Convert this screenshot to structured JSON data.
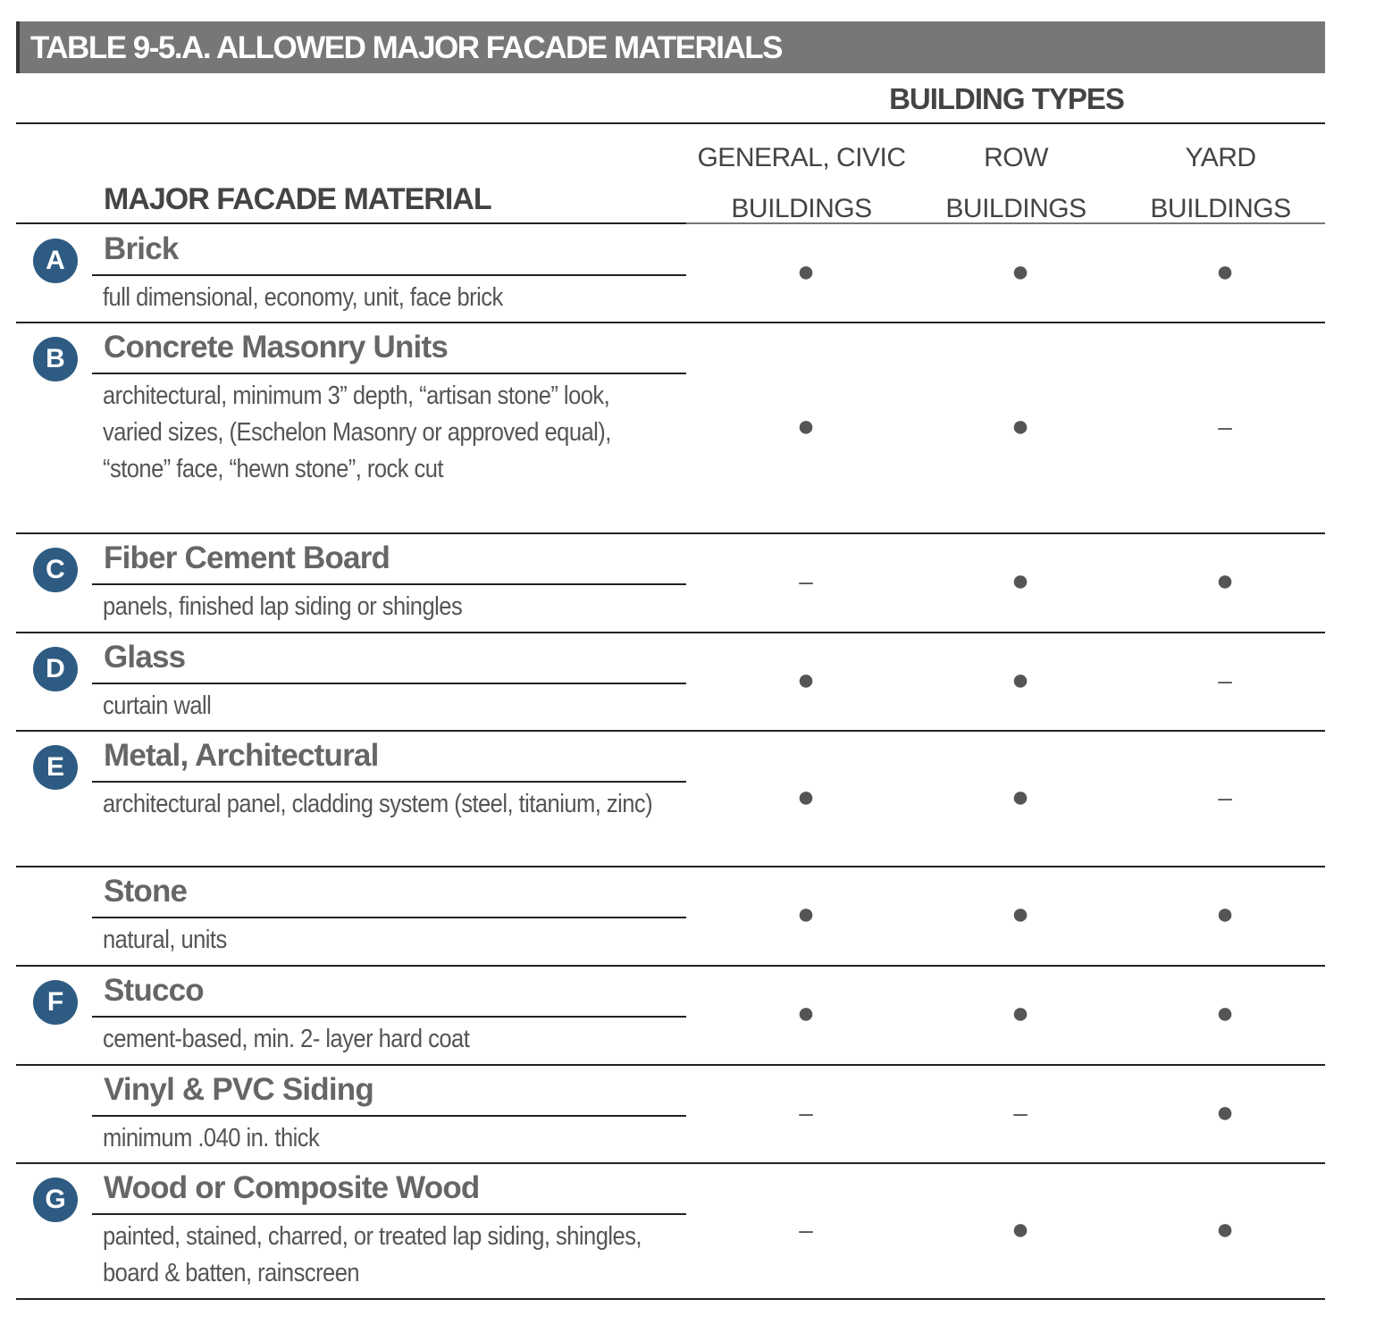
{
  "title": "TABLE 9-5.A.  ALLOWED MAJOR FACADE MATERIALS",
  "building_types_label": "BUILDING TYPES",
  "material_header": "MAJOR FACADE MATERIAL",
  "columns": [
    {
      "line1": "GENERAL, CIVIC",
      "line2": "BUILDINGS"
    },
    {
      "line1": "ROW",
      "line2": "BUILDINGS"
    },
    {
      "line1": "YARD",
      "line2": "BUILDINGS"
    }
  ],
  "badge_color": "#2e5b82",
  "rows": [
    {
      "badge": "A",
      "name": "Brick",
      "desc": "full dimensional, economy, unit, face brick",
      "values": [
        "●",
        "●",
        "●"
      ]
    },
    {
      "badge": "B",
      "name": "Concrete Masonry Units",
      "desc": "architectural, minimum 3” depth, “artisan stone” look, varied sizes, (Eschelon Masonry or approved equal), “stone” face, “hewn stone”, rock cut",
      "values": [
        "●",
        "●",
        "–"
      ]
    },
    {
      "badge": "C",
      "name": "Fiber Cement Board",
      "desc": "panels, finished lap siding or shingles",
      "values": [
        "–",
        "●",
        "●"
      ]
    },
    {
      "badge": "D",
      "name": "Glass",
      "desc": "curtain wall",
      "values": [
        "●",
        "●",
        "–"
      ]
    },
    {
      "badge": "E",
      "name": "Metal, Architectural",
      "desc": "architectural panel, cladding system (steel, titanium, zinc)",
      "values": [
        "●",
        "●",
        "–"
      ]
    },
    {
      "badge": "",
      "name": "Stone",
      "desc": "natural, units",
      "values": [
        "●",
        "●",
        "●"
      ]
    },
    {
      "badge": "F",
      "name": "Stucco",
      "desc": "cement-based, min. 2- layer hard coat",
      "values": [
        "●",
        "●",
        "●"
      ]
    },
    {
      "badge": "",
      "name": "Vinyl & PVC Siding",
      "desc": "minimum .040 in. thick",
      "values": [
        "–",
        "–",
        "●"
      ]
    },
    {
      "badge": "G",
      "name": "Wood or Composite Wood",
      "desc": "painted, stained, charred, or treated lap siding, shingles, board & batten, rainscreen",
      "values": [
        "–",
        "●",
        "●"
      ]
    }
  ]
}
